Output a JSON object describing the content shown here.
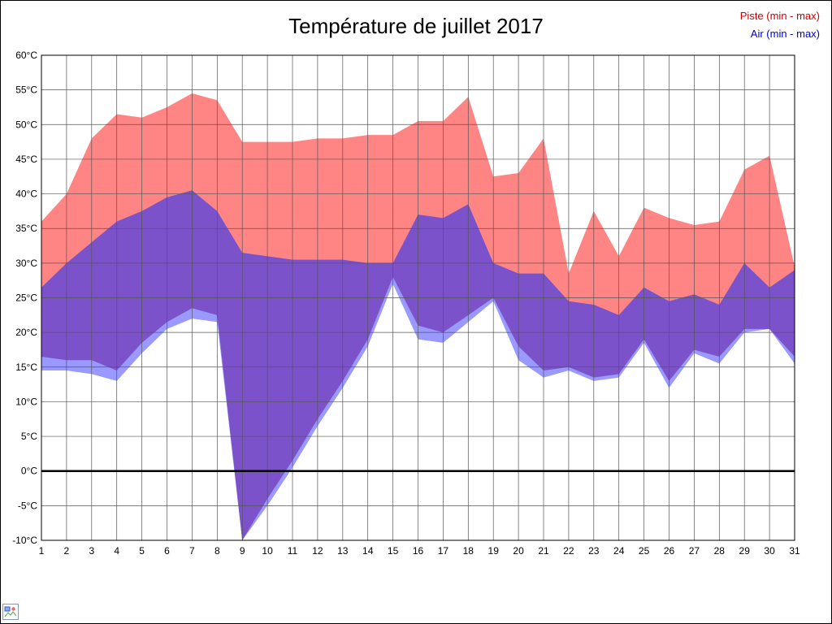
{
  "chart_data": {
    "type": "area",
    "title": "Température de juillet 2017",
    "legend": [
      {
        "label": "Piste (min - max)",
        "color": "#cc0000"
      },
      {
        "label": "Air (min - max)",
        "color": "#0000cc"
      }
    ],
    "x": [
      1,
      2,
      3,
      4,
      5,
      6,
      7,
      8,
      9,
      10,
      11,
      12,
      13,
      14,
      15,
      16,
      17,
      18,
      19,
      20,
      21,
      22,
      23,
      24,
      25,
      26,
      27,
      28,
      29,
      30,
      31
    ],
    "series": [
      {
        "name": "piste_max",
        "values": [
          36,
          40,
          48,
          51.5,
          51,
          52.5,
          54.5,
          53.5,
          47.5,
          47.5,
          47.5,
          48,
          48,
          48.5,
          48.5,
          50.5,
          50.5,
          54,
          42.5,
          43,
          48,
          28.5,
          37.5,
          31,
          38,
          36.5,
          35.5,
          36,
          43.5,
          45.5,
          29.5
        ]
      },
      {
        "name": "piste_min",
        "values": [
          16.5,
          16,
          16,
          14.5,
          18.5,
          21.5,
          23.5,
          22.5,
          -10,
          -4,
          1.5,
          7.5,
          13,
          19,
          28,
          21,
          20,
          22.5,
          25,
          18,
          14.5,
          15,
          13.5,
          14,
          19,
          13,
          17.5,
          16.5,
          20.5,
          20.5,
          16.5
        ]
      },
      {
        "name": "air_max",
        "values": [
          26.5,
          30,
          33,
          36,
          37.5,
          39.5,
          40.5,
          37.5,
          31.5,
          31,
          30.5,
          30.5,
          30.5,
          30,
          30,
          37,
          36.5,
          38.5,
          30,
          28.5,
          28.5,
          24.5,
          24,
          22.5,
          26.5,
          24.5,
          25.5,
          24,
          30,
          26.5,
          29
        ]
      },
      {
        "name": "air_min",
        "values": [
          14.5,
          14.5,
          14,
          13,
          17,
          20.5,
          22,
          21.5,
          -10,
          -5,
          0.5,
          6.5,
          12,
          18,
          27,
          19,
          18.5,
          21.5,
          24.5,
          16,
          13.5,
          14.5,
          13,
          13.5,
          18.5,
          12,
          17,
          15.5,
          20,
          20.5,
          15.5
        ]
      }
    ],
    "ylim": [
      -10,
      60
    ],
    "ytick_step": 5,
    "ylabel_suffix": "°C",
    "grid": true,
    "legend_position": "top-right",
    "colors": {
      "piste": "#ff8585",
      "air": "#9999ff",
      "overlap": "#7b52c9",
      "grid": "#555555",
      "zero_line": "#000000"
    }
  }
}
